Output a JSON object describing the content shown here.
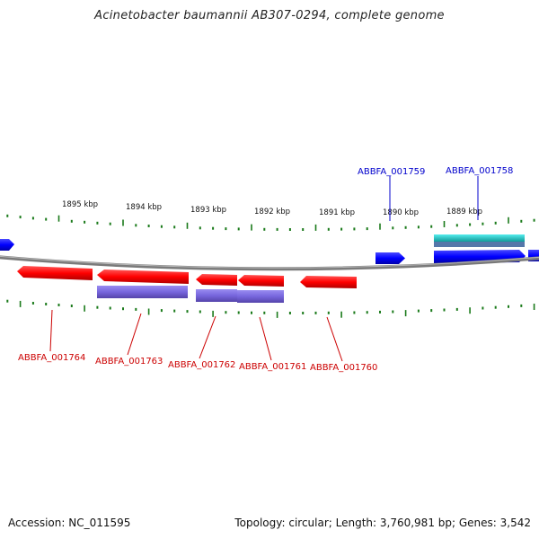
{
  "header": {
    "title": "Acinetobacter baumannii AB307-0294, complete genome"
  },
  "footer": {
    "accession": "Accession: NC_011595",
    "summary": "Topology: circular; Length: 3,760,981 bp; Genes: 3,542"
  },
  "ruler": {
    "labels": [
      "1895 kbp",
      "1894 kbp",
      "1893 kbp",
      "1892 kbp",
      "1891 kbp",
      "1890 kbp",
      "1889 kbp"
    ]
  },
  "genes": {
    "forward": [
      {
        "name": "ABBFA_001759",
        "color": "#0000cc"
      },
      {
        "name": "ABBFA_001758",
        "color": "#0000cc"
      }
    ],
    "reverse": [
      {
        "name": "ABBFA_001764",
        "color": "#cc0000"
      },
      {
        "name": "ABBFA_001763",
        "color": "#cc0000"
      },
      {
        "name": "ABBFA_001762",
        "color": "#cc0000"
      },
      {
        "name": "ABBFA_001761",
        "color": "#cc0000"
      },
      {
        "name": "ABBFA_001760",
        "color": "#cc0000"
      }
    ]
  },
  "colors": {
    "forward_cds": "#0000ff",
    "reverse_cds": "#ff0000",
    "annotation_band": "#7766dd",
    "teal_band": "#22cccc",
    "tick": "#1a7a1a",
    "backbone": "#808080"
  }
}
